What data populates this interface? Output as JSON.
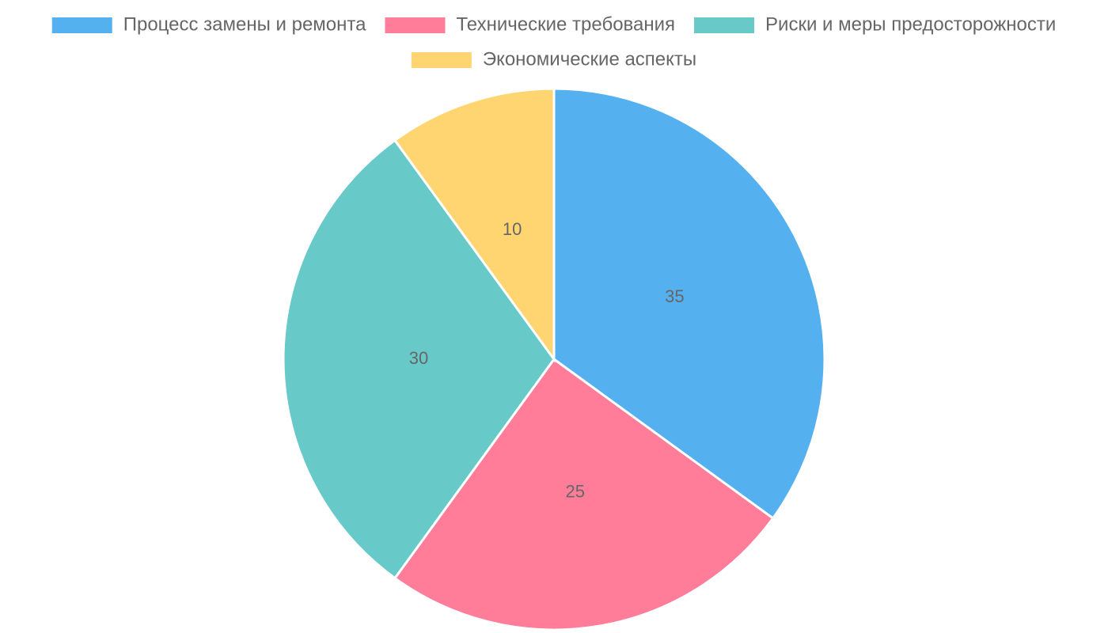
{
  "chart_data": {
    "type": "pie",
    "categories": [
      "Процесс замены и ремонта",
      "Технические требования",
      "Риски и меры предосторожности",
      "Экономические аспекты"
    ],
    "values": [
      35,
      25,
      30,
      10
    ],
    "colors": [
      "#55b0f0",
      "#ff7d98",
      "#68c9c9",
      "#ffd571"
    ],
    "legend": "top"
  }
}
